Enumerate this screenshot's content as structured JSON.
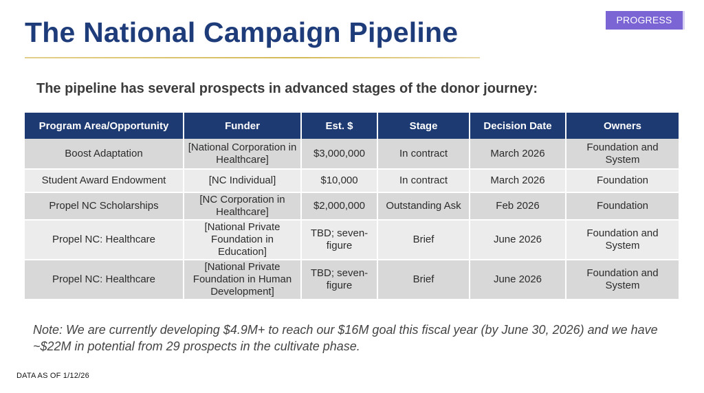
{
  "badge": "PROGRESS",
  "title": "The National Campaign Pipeline",
  "subtitle": "The pipeline has several prospects in advanced stages of the donor journey:",
  "table": {
    "headers": [
      "Program Area/Opportunity",
      "Funder",
      "Est. $",
      "Stage",
      "Decision Date",
      "Owners"
    ],
    "rows": [
      [
        "Boost Adaptation",
        "[National Corporation in Healthcare]",
        "$3,000,000",
        "In contract",
        "March 2026",
        "Foundation and System"
      ],
      [
        "Student Award Endowment",
        "[NC Individual]",
        "$10,000",
        "In contract",
        "March 2026",
        "Foundation"
      ],
      [
        "Propel NC Scholarships",
        "[NC Corporation in Healthcare]",
        "$2,000,000",
        "Outstanding Ask",
        "Feb 2026",
        "Foundation"
      ],
      [
        "Propel NC: Healthcare",
        "[National Private Foundation in Education]",
        "TBD; seven-figure",
        "Brief",
        "June 2026",
        "Foundation and System"
      ],
      [
        "Propel NC: Healthcare",
        "[National Private Foundation in Human Development]",
        "TBD; seven-figure",
        "Brief",
        "June 2026",
        "Foundation and System"
      ]
    ]
  },
  "note": "Note: We are currently developing $4.9M+ to reach our $16M goal this fiscal year (by June 30, 2026) and we have ~$22M in potential from 29 prospects in the cultivate phase.",
  "data_as_of": "DATA AS OF 1/12/26",
  "colors": {
    "title": "#1f3c7a",
    "header_bg": "#1d3a72",
    "badge_bg": "#7b65d4",
    "row_dark": "#d8d8d8",
    "row_light": "#ececec",
    "rule_gold": "#d6b956"
  }
}
